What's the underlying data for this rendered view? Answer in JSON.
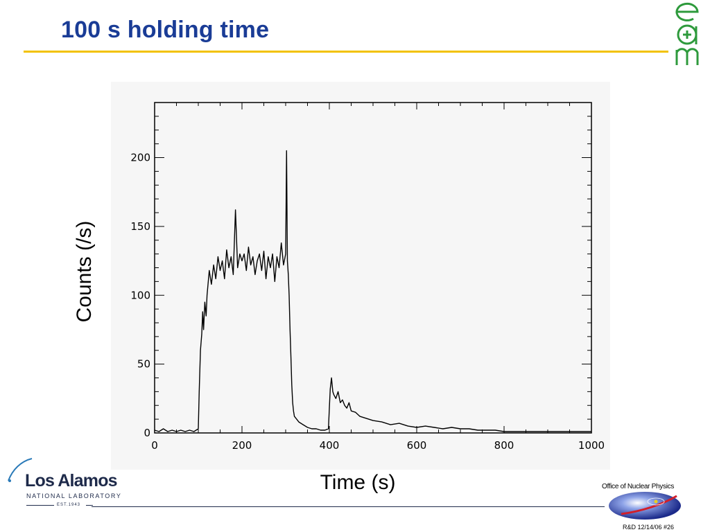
{
  "slide": {
    "title": "100 s holding time",
    "accent_color": "#f2c200",
    "title_color": "#1a3c96"
  },
  "logos": {
    "top_right": {
      "icon": "edm-logo-icon",
      "color": "#2e9a3c"
    },
    "bottom_left": {
      "name": "Los Alamos",
      "subtitle": "NATIONAL LABORATORY",
      "est": "EST.1943"
    },
    "bottom_right": {
      "icon": "office-of-nuclear-physics-icon"
    }
  },
  "footer": {
    "office": "Office of Nuclear Physics",
    "slide_ref": "R&D 12/14/06  #26"
  },
  "chart_data": {
    "type": "line",
    "xlabel": "Time (s)",
    "ylabel": "Counts (/s)",
    "xlim": [
      0,
      1000
    ],
    "ylim": [
      0,
      240
    ],
    "xticks": [
      0,
      200,
      400,
      600,
      800,
      1000
    ],
    "yticks": [
      0,
      50,
      100,
      150,
      200
    ],
    "grid": false,
    "series": [
      {
        "color": "#000000",
        "x": [
          0,
          10,
          20,
          30,
          40,
          50,
          60,
          70,
          80,
          90,
          100,
          102,
          105,
          108,
          110,
          112,
          115,
          118,
          120,
          125,
          130,
          135,
          140,
          145,
          150,
          155,
          160,
          165,
          170,
          175,
          180,
          185,
          190,
          195,
          200,
          205,
          210,
          215,
          220,
          225,
          230,
          235,
          240,
          245,
          250,
          255,
          260,
          265,
          270,
          275,
          280,
          285,
          290,
          295,
          300,
          302,
          304,
          306,
          308,
          310,
          312,
          314,
          316,
          318,
          320,
          325,
          330,
          340,
          350,
          360,
          370,
          380,
          390,
          398,
          400,
          402,
          405,
          408,
          410,
          415,
          420,
          425,
          430,
          435,
          440,
          445,
          450,
          460,
          470,
          480,
          490,
          500,
          520,
          540,
          560,
          580,
          600,
          620,
          640,
          660,
          680,
          700,
          720,
          740,
          760,
          780,
          800,
          820,
          850,
          880,
          900,
          950,
          1000
        ],
        "y": [
          2,
          1,
          3,
          1,
          2,
          1,
          2,
          1,
          2,
          1,
          3,
          30,
          60,
          72,
          88,
          75,
          95,
          85,
          100,
          118,
          108,
          122,
          112,
          128,
          118,
          125,
          112,
          133,
          120,
          128,
          115,
          162,
          120,
          130,
          125,
          130,
          118,
          135,
          122,
          128,
          115,
          125,
          130,
          118,
          132,
          112,
          128,
          120,
          130,
          110,
          128,
          120,
          138,
          122,
          130,
          205,
          125,
          115,
          100,
          75,
          55,
          35,
          22,
          16,
          12,
          10,
          8,
          6,
          4,
          3,
          3,
          2,
          2,
          3,
          18,
          32,
          40,
          30,
          28,
          25,
          30,
          22,
          24,
          20,
          18,
          22,
          16,
          15,
          12,
          11,
          10,
          9,
          8,
          6,
          7,
          5,
          4,
          5,
          4,
          3,
          4,
          3,
          3,
          2,
          2,
          2,
          1,
          1,
          1,
          1,
          1,
          1,
          1
        ]
      }
    ]
  }
}
